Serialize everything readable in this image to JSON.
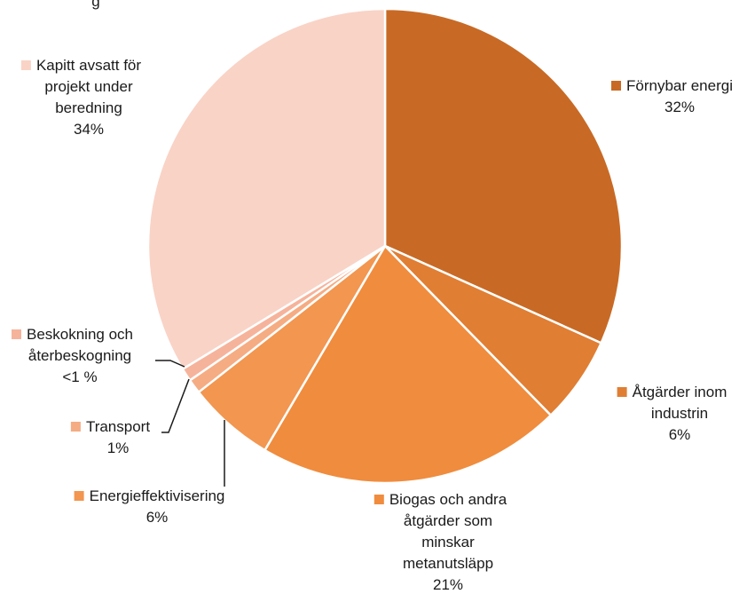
{
  "chart_data": {
    "type": "pie",
    "title": "",
    "values_unit": "%",
    "slices": [
      {
        "name": "Förnybar energi",
        "value": 32,
        "value_label": "32%",
        "color": "#C86A25",
        "label_lines": [
          "Förnybar energi",
          "32%"
        ]
      },
      {
        "name": "Åtgärder inom industrin",
        "value": 6,
        "value_label": "6%",
        "color": "#E07E33",
        "label_lines": [
          "Åtgärder inom",
          "industrin",
          "6%"
        ]
      },
      {
        "name": "Biogas och andra åtgärder som minskar metanutsläpp",
        "value": 21,
        "value_label": "21%",
        "color": "#F08C3D",
        "label_lines": [
          "Biogas och andra",
          "åtgärder som",
          "minskar",
          "metanutsläpp",
          "21%"
        ]
      },
      {
        "name": "Energieffektivisering",
        "value": 6,
        "value_label": "6%",
        "color": "#F29650",
        "label_lines": [
          "Energieffektivisering",
          "6%"
        ]
      },
      {
        "name": "Transport",
        "value": 1,
        "value_label": "1%",
        "color": "#F5AC83",
        "label_lines": [
          "Transport",
          "1%"
        ]
      },
      {
        "name": "Beskokning och återbeskogning",
        "value": 0.9,
        "value_label": "<1 %",
        "color": "#F6B39B",
        "label_lines": [
          "Beskokning och",
          "återbeskogning",
          "<1 %"
        ]
      },
      {
        "name": "Kapitt avsatt för projekt under beredning",
        "value": 34,
        "value_label": "34%",
        "color": "#F9D3C6",
        "label_lines": [
          "Kapitt avsatt för",
          "projekt under",
          "beredning",
          "34%"
        ]
      }
    ],
    "top_cut_text": "g",
    "legend": "labels next to slices"
  }
}
